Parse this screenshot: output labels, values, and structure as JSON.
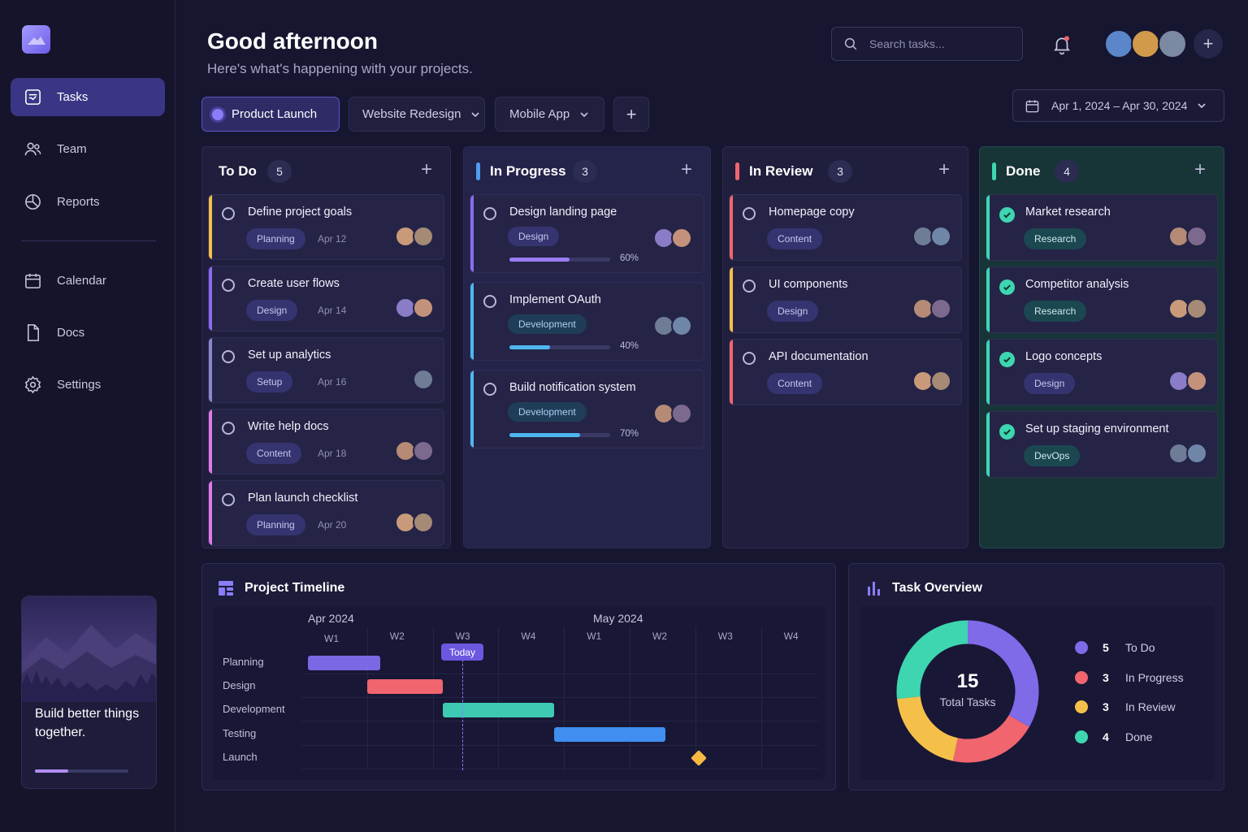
{
  "sidebar": {
    "items": [
      {
        "label": "Tasks",
        "icon": "tasks-icon"
      },
      {
        "label": "Team",
        "icon": "team-icon"
      },
      {
        "label": "Reports",
        "icon": "reports-icon"
      },
      {
        "label": "Calendar",
        "icon": "calendar-icon"
      },
      {
        "label": "Docs",
        "icon": "docs-icon"
      },
      {
        "label": "Settings",
        "icon": "settings-icon"
      }
    ],
    "promo": {
      "text": "Build better things together.",
      "progress": 0.36
    }
  },
  "header": {
    "greeting": "Good afternoon",
    "subtitle": "Here's what's happening with your projects.",
    "search_placeholder": "Search tasks...",
    "date_range": "Apr 1, 2024 – Apr 30, 2024"
  },
  "project_tabs": [
    {
      "label": "Product Launch",
      "active": true
    },
    {
      "label": "Website Redesign",
      "active": false
    },
    {
      "label": "Mobile App",
      "active": false
    }
  ],
  "columns": [
    {
      "title": "To Do",
      "count": "5",
      "color": "#f5c04a",
      "cards": [
        {
          "title": "Define project goals",
          "tag": "Planning",
          "date": "Apr 12",
          "accent": "#f5c04a"
        },
        {
          "title": "Create user flows",
          "tag": "Design",
          "date": "Apr 14",
          "accent": "#8b6cf0"
        },
        {
          "title": "Set up analytics",
          "tag": "Setup",
          "date": "Apr 16",
          "accent": "#8b87c8"
        },
        {
          "title": "Write help docs",
          "tag": "Content",
          "date": "Apr 18",
          "accent": "#e279e6"
        },
        {
          "title": "Plan launch checklist",
          "tag": "Planning",
          "date": "Apr 20",
          "accent": "#e279e6"
        }
      ]
    },
    {
      "title": "In Progress",
      "count": "3",
      "color": "#4f9cf0",
      "cards": [
        {
          "title": "Design landing page",
          "tag": "Design",
          "progress_label": "60%",
          "progress": 0.6,
          "accent": "#8b6cf0",
          "fill": "#9b7cf4"
        },
        {
          "title": "Implement OAuth",
          "tag": "Development",
          "progress_label": "40%",
          "progress": 0.4,
          "accent": "#4fb6ef",
          "fill": "#4fb6ef"
        },
        {
          "title": "Build notification system",
          "tag": "Development",
          "progress_label": "70%",
          "progress": 0.7,
          "accent": "#4fb6ef",
          "fill": "#4fb6ef"
        }
      ]
    },
    {
      "title": "In Review",
      "count": "3",
      "color": "#f0656e",
      "cards": [
        {
          "title": "Homepage copy",
          "tag": "Content",
          "accent": "#f0656e"
        },
        {
          "title": "UI components",
          "tag": "Design",
          "accent": "#f5c04a"
        },
        {
          "title": "API documentation",
          "tag": "Content",
          "accent": "#f0656e"
        }
      ]
    },
    {
      "title": "Done",
      "count": "4",
      "color": "#3ed6b0",
      "cards": [
        {
          "title": "Market research",
          "tag": "Research"
        },
        {
          "title": "Competitor analysis",
          "tag": "Research"
        },
        {
          "title": "Logo concepts",
          "tag": "Design"
        },
        {
          "title": "Set up staging environment",
          "tag": "DevOps"
        }
      ]
    }
  ],
  "timeline": {
    "title": "Project Timeline",
    "months": [
      "Apr 2024",
      "May 2024"
    ],
    "weeks": [
      "W1",
      "W2",
      "W3",
      "W4",
      "W1",
      "W2",
      "W3",
      "W4"
    ],
    "today_label": "Today",
    "today_week": 2.45,
    "rows": [
      {
        "label": "Planning",
        "start_week": 0.1,
        "end_week": 1.2,
        "color": "#7b68e4"
      },
      {
        "label": "Design",
        "start_week": 1.0,
        "end_week": 2.15,
        "color": "#f0656e"
      },
      {
        "label": "Development",
        "start_week": 2.15,
        "end_week": 3.85,
        "color": "#3ec9b3"
      },
      {
        "label": "Testing",
        "start_week": 3.85,
        "end_week": 5.55,
        "color": "#3f8ef0"
      },
      {
        "label": "Launch",
        "milestone_week": 6.05,
        "color": "#f5b942"
      }
    ]
  },
  "overview": {
    "title": "Task Overview",
    "total": "15",
    "total_label": "Total Tasks",
    "chart_data": {
      "type": "pie",
      "categories": [
        "To Do",
        "In Progress",
        "In Review",
        "Done"
      ],
      "values": [
        5,
        3,
        3,
        4
      ],
      "colors": [
        "#7f6ae8",
        "#f0656e",
        "#f5c04a",
        "#3ed6b0"
      ]
    }
  }
}
